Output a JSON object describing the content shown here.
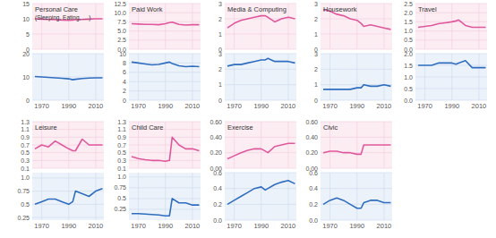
{
  "chart_data": [
    {
      "type": "line",
      "title": "Personal Care",
      "subtitle": "(Sleeping, Eating, ....)",
      "x": [
        1965,
        1970,
        1975,
        1980,
        1985,
        1990,
        1993,
        1995,
        2000,
        2005,
        2010,
        2015
      ],
      "series": [
        {
          "color": "#e0589c",
          "values": [
            10,
            9.9,
            9.8,
            9.7,
            9.6,
            9.5,
            9.6,
            9.7,
            9.8,
            9.9,
            10,
            10
          ]
        }
      ],
      "xlim": [
        1963,
        2016
      ],
      "xticks": [
        1970,
        1990,
        2010
      ],
      "ylim": [
        0,
        15
      ],
      "yticks": [
        0,
        5,
        10,
        15
      ],
      "grid": true,
      "tick_labels": "y"
    },
    {
      "type": "line",
      "x": [
        1965,
        1970,
        1975,
        1980,
        1985,
        1990,
        1993,
        1995,
        2000,
        2005,
        2010,
        2015
      ],
      "series": [
        {
          "color": "#2f6dbf",
          "values": [
            10.2,
            10,
            9.8,
            9.6,
            9.4,
            9.2,
            8.8,
            9,
            9.3,
            9.5,
            9.6,
            9.6
          ]
        }
      ],
      "xlim": [
        1963,
        2016
      ],
      "xticks": [
        1970,
        1990,
        2010
      ],
      "ylim": [
        0,
        20
      ],
      "yticks": [
        0,
        10,
        20
      ],
      "grid": true
    },
    {
      "type": "line",
      "title": "Paid Work",
      "x": [
        1965,
        1970,
        1975,
        1980,
        1985,
        1990,
        1993,
        1995,
        2000,
        2005,
        2010,
        2015
      ],
      "series": [
        {
          "color": "#e0589c",
          "values": [
            7,
            6.9,
            6.8,
            6.8,
            6.7,
            7,
            7.3,
            7.4,
            6.8,
            6.6,
            6.7,
            6.7
          ]
        }
      ],
      "xlim": [
        1963,
        2016
      ],
      "xticks": [
        1970,
        1990,
        2010
      ],
      "ylim": [
        0,
        12.5
      ],
      "yticks": [
        {
          "value": 0,
          "label": "0.0"
        },
        2.5,
        {
          "value": 5,
          "label": "5.0"
        },
        7.5,
        {
          "value": 10,
          "label": "10.0"
        },
        12.5
      ],
      "grid": true,
      "tick_labels": "y"
    },
    {
      "type": "line",
      "x": [
        1965,
        1970,
        1975,
        1980,
        1985,
        1990,
        1993,
        1995,
        2000,
        2005,
        2010,
        2015
      ],
      "series": [
        {
          "color": "#2f6dbf",
          "values": [
            8.2,
            8,
            7.8,
            7.6,
            7.7,
            8,
            8.2,
            7.9,
            7.4,
            7.2,
            7.3,
            7.2
          ]
        }
      ],
      "xlim": [
        1963,
        2016
      ],
      "xticks": [
        1970,
        1990,
        2010
      ],
      "ylim": [
        0,
        10
      ],
      "yticks": [
        0,
        2,
        4,
        6,
        8,
        10
      ],
      "grid": true
    },
    {
      "type": "line",
      "title": "Media & Computing",
      "x": [
        1965,
        1970,
        1975,
        1980,
        1985,
        1990,
        1993,
        1995,
        2000,
        2005,
        2010,
        2015
      ],
      "series": [
        {
          "color": "#e0589c",
          "values": [
            1.4,
            1.7,
            1.9,
            2,
            2.1,
            2.2,
            2.2,
            2.1,
            1.8,
            2,
            2.1,
            2
          ]
        }
      ],
      "xlim": [
        1963,
        2016
      ],
      "xticks": [
        1970,
        1990,
        2010
      ],
      "ylim": [
        0,
        3
      ],
      "yticks": [
        0,
        1,
        2,
        3
      ],
      "grid": true,
      "tick_labels": "y"
    },
    {
      "type": "line",
      "x": [
        1965,
        1970,
        1975,
        1980,
        1985,
        1990,
        1993,
        1995,
        2000,
        2005,
        2010,
        2015
      ],
      "series": [
        {
          "color": "#2f6dbf",
          "values": [
            2.2,
            2.3,
            2.3,
            2.4,
            2.5,
            2.6,
            2.6,
            2.7,
            2.5,
            2.5,
            2.5,
            2.4
          ]
        }
      ],
      "xlim": [
        1963,
        2016
      ],
      "xticks": [
        1970,
        1990,
        2010
      ],
      "ylim": [
        0,
        3
      ],
      "yticks": [
        0,
        1,
        2,
        3
      ],
      "grid": true
    },
    {
      "type": "line",
      "title": "Housework",
      "x": [
        1965,
        1970,
        1975,
        1980,
        1985,
        1990,
        1993,
        1995,
        2000,
        2005,
        2010,
        2015
      ],
      "series": [
        {
          "color": "#e0589c",
          "values": [
            2.6,
            2.5,
            2.3,
            2.2,
            2,
            1.9,
            1.7,
            1.5,
            1.6,
            1.5,
            1.4,
            1.3
          ]
        }
      ],
      "xlim": [
        1963,
        2016
      ],
      "xticks": [
        1970,
        1990,
        2010
      ],
      "ylim": [
        0,
        3
      ],
      "yticks": [
        0,
        1,
        2,
        3
      ],
      "grid": true,
      "tick_labels": "y"
    },
    {
      "type": "line",
      "x": [
        1965,
        1970,
        1975,
        1980,
        1985,
        1990,
        1993,
        1995,
        2000,
        2005,
        2010,
        2015
      ],
      "series": [
        {
          "color": "#2f6dbf",
          "values": [
            0.7,
            0.7,
            0.7,
            0.7,
            0.7,
            0.8,
            0.8,
            1,
            0.9,
            0.9,
            1,
            0.9
          ]
        }
      ],
      "xlim": [
        1963,
        2016
      ],
      "xticks": [
        1970,
        1990,
        2010
      ],
      "ylim": [
        0,
        3
      ],
      "yticks": [
        0,
        1,
        2,
        3
      ],
      "grid": true
    },
    {
      "type": "line",
      "title": "Travel",
      "x": [
        1965,
        1970,
        1975,
        1980,
        1985,
        1990,
        1993,
        1995,
        2000,
        2005,
        2010,
        2015
      ],
      "series": [
        {
          "color": "#e0589c",
          "values": [
            1.2,
            1.25,
            1.3,
            1.4,
            1.45,
            1.5,
            1.55,
            1.6,
            1.3,
            1.2,
            1.2,
            1.2
          ]
        }
      ],
      "xlim": [
        1963,
        2016
      ],
      "xticks": [
        1970,
        1990,
        2010
      ],
      "ylim": [
        0,
        2.5
      ],
      "yticks": [
        {
          "value": 0,
          "label": "0.0"
        },
        0.5,
        {
          "value": 1,
          "label": "1.0"
        },
        1.5,
        {
          "value": 2,
          "label": "2.0"
        },
        2.5
      ],
      "grid": true,
      "tick_labels": "y"
    },
    {
      "type": "line",
      "x": [
        1965,
        1970,
        1975,
        1980,
        1985,
        1990,
        1993,
        1995,
        2000,
        2005,
        2010,
        2015
      ],
      "series": [
        {
          "color": "#2f6dbf",
          "values": [
            1.5,
            1.5,
            1.5,
            1.6,
            1.6,
            1.6,
            1.55,
            1.6,
            1.7,
            1.4,
            1.4,
            1.4
          ]
        }
      ],
      "xlim": [
        1963,
        2016
      ],
      "xticks": [
        1970,
        1990,
        2010
      ],
      "ylim": [
        0,
        2
      ],
      "yticks": [
        {
          "value": 0,
          "label": "0.0"
        },
        0.5,
        {
          "value": 1,
          "label": "1.0"
        },
        1.5,
        {
          "value": 2,
          "label": "2.0"
        }
      ],
      "grid": true
    },
    {
      "type": "line",
      "title": "Leisure",
      "x": [
        1965,
        1970,
        1975,
        1980,
        1985,
        1990,
        1993,
        1995,
        2000,
        2005,
        2010,
        2015
      ],
      "series": [
        {
          "color": "#e0589c",
          "values": [
            0.6,
            0.7,
            0.65,
            0.8,
            0.7,
            0.6,
            0.55,
            0.55,
            0.85,
            0.7,
            0.7,
            0.7
          ]
        }
      ],
      "xlim": [
        1963,
        2016
      ],
      "xticks": [
        1970,
        1990,
        2010
      ],
      "ylim": [
        0.1,
        1.3
      ],
      "yticks": [
        0.1,
        0.3,
        0.5,
        0.7,
        0.9,
        1.1,
        1.3
      ],
      "grid": true,
      "tick_labels": "y"
    },
    {
      "type": "line",
      "x": [
        1965,
        1970,
        1975,
        1980,
        1985,
        1990,
        1993,
        1995,
        2000,
        2005,
        2010,
        2015
      ],
      "series": [
        {
          "color": "#2f6dbf",
          "values": [
            0.5,
            0.55,
            0.6,
            0.6,
            0.55,
            0.5,
            0.55,
            0.75,
            0.7,
            0.65,
            0.75,
            0.8
          ]
        }
      ],
      "xlim": [
        1963,
        2016
      ],
      "xticks": [
        1970,
        1990,
        2010
      ],
      "ylim": [
        0.2,
        1.1
      ],
      "yticks": [
        0.25,
        0.5,
        0.75,
        {
          "value": 1,
          "label": "1.0"
        }
      ],
      "grid": true
    },
    {
      "type": "line",
      "title": "Child Care",
      "x": [
        1965,
        1970,
        1975,
        1980,
        1985,
        1990,
        1993,
        1995,
        2000,
        2005,
        2010,
        2015
      ],
      "series": [
        {
          "color": "#e0589c",
          "values": [
            0.4,
            0.35,
            0.32,
            0.3,
            0.3,
            0.28,
            0.3,
            0.9,
            0.7,
            0.6,
            0.6,
            0.55
          ]
        }
      ],
      "xlim": [
        1963,
        2016
      ],
      "xticks": [
        1970,
        1990,
        2010
      ],
      "ylim": [
        0.1,
        1.3
      ],
      "yticks": [
        0.1,
        0.3,
        0.5,
        0.7,
        0.9,
        1.1,
        1.3
      ],
      "grid": true,
      "tick_labels": "y"
    },
    {
      "type": "line",
      "x": [
        1965,
        1970,
        1975,
        1980,
        1985,
        1990,
        1993,
        1995,
        2000,
        2005,
        2010,
        2015
      ],
      "series": [
        {
          "color": "#2f6dbf",
          "values": [
            0.15,
            0.15,
            0.14,
            0.13,
            0.12,
            0.1,
            0.1,
            0.5,
            0.4,
            0.4,
            0.35,
            0.35
          ]
        }
      ],
      "xlim": [
        1963,
        2016
      ],
      "xticks": [
        1970,
        1990,
        2010
      ],
      "ylim": [
        0,
        1.1
      ],
      "yticks": [
        0.25,
        0.5,
        0.75,
        {
          "value": 1,
          "label": "1.0"
        }
      ],
      "grid": true
    },
    {
      "type": "line",
      "title": "Exercise",
      "x": [
        1965,
        1970,
        1975,
        1980,
        1985,
        1990,
        1993,
        1995,
        2000,
        2005,
        2010,
        2015
      ],
      "series": [
        {
          "color": "#e0589c",
          "values": [
            0.12,
            0.16,
            0.2,
            0.23,
            0.25,
            0.25,
            0.22,
            0.2,
            0.28,
            0.3,
            0.32,
            0.32
          ]
        }
      ],
      "xlim": [
        1963,
        2016
      ],
      "xticks": [
        1970,
        1990,
        2010
      ],
      "ylim": [
        0,
        0.6
      ],
      "yticks": [
        {
          "value": 0,
          "label": "0.00"
        },
        {
          "value": 0.2,
          "label": "0.20"
        },
        {
          "value": 0.4,
          "label": "0.40"
        },
        {
          "value": 0.6,
          "label": "0.60"
        }
      ],
      "grid": true,
      "tick_labels": "y"
    },
    {
      "type": "line",
      "x": [
        1965,
        1970,
        1975,
        1980,
        1985,
        1990,
        1993,
        1995,
        2000,
        2005,
        2010,
        2015
      ],
      "series": [
        {
          "color": "#2f6dbf",
          "values": [
            0.2,
            0.25,
            0.3,
            0.35,
            0.4,
            0.42,
            0.38,
            0.4,
            0.45,
            0.48,
            0.5,
            0.46
          ]
        }
      ],
      "xlim": [
        1963,
        2016
      ],
      "xticks": [
        1970,
        1990,
        2010
      ],
      "ylim": [
        0,
        0.6
      ],
      "yticks": [
        {
          "value": 0,
          "label": "0.0"
        },
        0.2,
        0.4,
        0.6
      ],
      "grid": true
    },
    {
      "type": "line",
      "title": "Civic",
      "x": [
        1965,
        1970,
        1975,
        1980,
        1985,
        1990,
        1993,
        1995,
        2000,
        2005,
        2010,
        2015
      ],
      "series": [
        {
          "color": "#e0589c",
          "values": [
            0.2,
            0.22,
            0.22,
            0.2,
            0.2,
            0.18,
            0.18,
            0.3,
            0.3,
            0.3,
            0.3,
            0.3
          ]
        }
      ],
      "xlim": [
        1963,
        2016
      ],
      "xticks": [
        1970,
        1990,
        2010
      ],
      "ylim": [
        0,
        0.6
      ],
      "yticks": [
        {
          "value": 0,
          "label": "0.00"
        },
        {
          "value": 0.2,
          "label": "0.20"
        },
        {
          "value": 0.4,
          "label": "0.40"
        },
        {
          "value": 0.6,
          "label": "0.60"
        }
      ],
      "grid": true,
      "tick_labels": "y"
    },
    {
      "type": "line",
      "x": [
        1965,
        1970,
        1975,
        1980,
        1985,
        1990,
        1993,
        1995,
        2000,
        2005,
        2010,
        2015
      ],
      "series": [
        {
          "color": "#2f6dbf",
          "values": [
            0.2,
            0.25,
            0.28,
            0.25,
            0.2,
            0.15,
            0.15,
            0.22,
            0.25,
            0.25,
            0.22,
            0.22
          ]
        }
      ],
      "xlim": [
        1963,
        2016
      ],
      "xticks": [
        1970,
        1990,
        2010
      ],
      "ylim": [
        0,
        0.6
      ],
      "yticks": [
        {
          "value": 0,
          "label": "0.0"
        },
        0.2,
        0.4,
        0.6
      ],
      "grid": true
    }
  ]
}
